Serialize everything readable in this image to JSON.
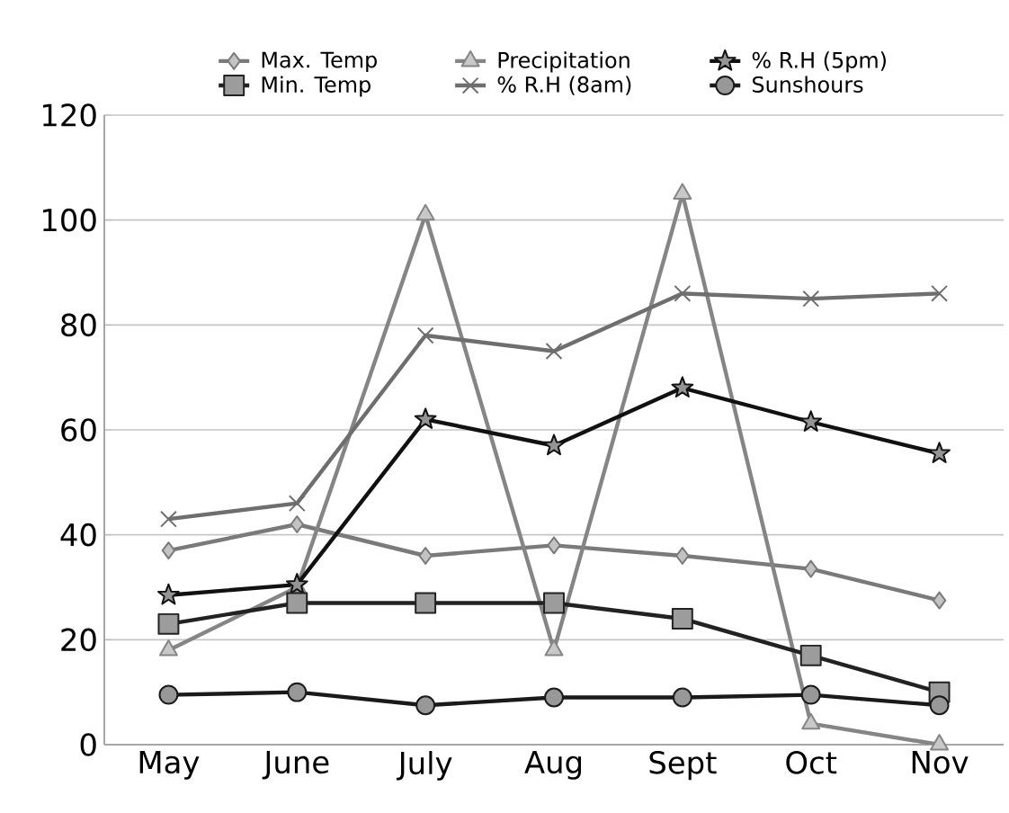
{
  "chart_data": {
    "type": "line",
    "categories": [
      "May",
      "June",
      "July",
      "Aug",
      "Sept",
      "Oct",
      "Nov"
    ],
    "series": [
      {
        "name": "Max. Temp",
        "color": "#7a7a7a",
        "marker": "diamond",
        "values": [
          37,
          42,
          36,
          38,
          36,
          33.5,
          27.5
        ]
      },
      {
        "name": "Precipitation",
        "color": "#858585",
        "marker": "triangle",
        "values": [
          18,
          30,
          101,
          18,
          105,
          4,
          0
        ]
      },
      {
        "name": "% R.H (5pm)",
        "color": "#111111",
        "marker": "star",
        "values": [
          28.5,
          30.5,
          62,
          57,
          68,
          61.5,
          55.5
        ]
      },
      {
        "name": "Min. Temp",
        "color": "#222222",
        "marker": "square",
        "values": [
          23,
          27,
          27,
          27,
          24,
          17,
          10
        ]
      },
      {
        "name": "% R.H (8am)",
        "color": "#6e6e6e",
        "marker": "cross",
        "values": [
          43,
          46,
          78,
          75,
          86,
          85,
          86
        ]
      },
      {
        "name": "Sunshours",
        "color": "#1a1a1a",
        "marker": "circle",
        "values": [
          9.5,
          10,
          7.5,
          9,
          9,
          9.5,
          7.5
        ]
      }
    ],
    "ylim": [
      0,
      120
    ],
    "yticks": [
      0,
      20,
      40,
      60,
      80,
      100,
      120
    ],
    "grid": "y",
    "legend": "top"
  }
}
